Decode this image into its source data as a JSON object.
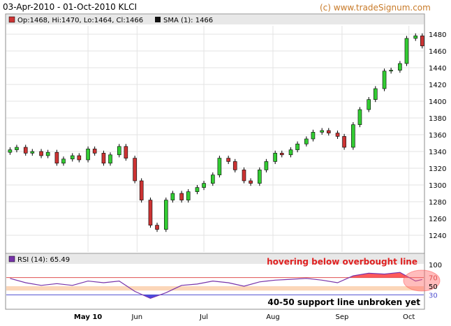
{
  "header": {
    "title": "03-Apr-2010 - 01-Oct-2010 KLCI",
    "copyright": "(c) www.tradeSignum.com"
  },
  "price_legend": {
    "ohlc_label": "Op:1468, Hi:1470, Lo:1464, Cl:1466",
    "sma_label": "SMA (1): 1466"
  },
  "rsi_legend": {
    "label": "RSI (14): 65.49"
  },
  "annotations": {
    "overbought_note": "hovering below overbought line",
    "support_note": "40-50 support line unbroken yet"
  },
  "colors": {
    "up_candle": "#33cc33",
    "down_candle": "#cc3333",
    "rsi_line": "#7733aa",
    "overbought_fill": "#ff5a5a",
    "oversold_fill": "#4a4ae0",
    "support_band": "#fbd6b8",
    "legend_bar": "#e8e8e8"
  },
  "chart_data": [
    {
      "type": "candlestick",
      "title": "03-Apr-2010 - 01-Oct-2010 KLCI",
      "ylim": [
        1220,
        1490
      ],
      "y_ticks": [
        1240,
        1260,
        1280,
        1300,
        1320,
        1340,
        1360,
        1380,
        1400,
        1420,
        1440,
        1460,
        1480
      ],
      "x_ticks": [
        "May 10",
        "Jun",
        "Jul",
        "Aug",
        "Sep",
        "Oct"
      ],
      "grid": true,
      "last": {
        "open": 1468,
        "high": 1470,
        "low": 1464,
        "close": 1466
      },
      "close_series": [
        {
          "date": "2010-04-05",
          "close": 1342
        },
        {
          "date": "2010-04-08",
          "close": 1345
        },
        {
          "date": "2010-04-12",
          "close": 1338
        },
        {
          "date": "2010-04-15",
          "close": 1340
        },
        {
          "date": "2010-04-19",
          "close": 1335
        },
        {
          "date": "2010-04-22",
          "close": 1339
        },
        {
          "date": "2010-04-26",
          "close": 1326
        },
        {
          "date": "2010-04-29",
          "close": 1331
        },
        {
          "date": "2010-05-03",
          "close": 1335
        },
        {
          "date": "2010-05-06",
          "close": 1330
        },
        {
          "date": "2010-05-10",
          "close": 1343
        },
        {
          "date": "2010-05-13",
          "close": 1338
        },
        {
          "date": "2010-05-17",
          "close": 1326
        },
        {
          "date": "2010-05-20",
          "close": 1336
        },
        {
          "date": "2010-05-24",
          "close": 1346
        },
        {
          "date": "2010-05-27",
          "close": 1332
        },
        {
          "date": "2010-05-31",
          "close": 1305
        },
        {
          "date": "2010-06-03",
          "close": 1282
        },
        {
          "date": "2010-06-07",
          "close": 1252
        },
        {
          "date": "2010-06-10",
          "close": 1247
        },
        {
          "date": "2010-06-14",
          "close": 1282
        },
        {
          "date": "2010-06-17",
          "close": 1290
        },
        {
          "date": "2010-06-21",
          "close": 1282
        },
        {
          "date": "2010-06-24",
          "close": 1292
        },
        {
          "date": "2010-06-28",
          "close": 1297
        },
        {
          "date": "2010-07-01",
          "close": 1302
        },
        {
          "date": "2010-07-05",
          "close": 1312
        },
        {
          "date": "2010-07-08",
          "close": 1332
        },
        {
          "date": "2010-07-12",
          "close": 1328
        },
        {
          "date": "2010-07-15",
          "close": 1318
        },
        {
          "date": "2010-07-19",
          "close": 1305
        },
        {
          "date": "2010-07-22",
          "close": 1302
        },
        {
          "date": "2010-07-26",
          "close": 1318
        },
        {
          "date": "2010-07-29",
          "close": 1328
        },
        {
          "date": "2010-08-02",
          "close": 1338
        },
        {
          "date": "2010-08-05",
          "close": 1336
        },
        {
          "date": "2010-08-09",
          "close": 1342
        },
        {
          "date": "2010-08-12",
          "close": 1349
        },
        {
          "date": "2010-08-16",
          "close": 1355
        },
        {
          "date": "2010-08-19",
          "close": 1363
        },
        {
          "date": "2010-08-23",
          "close": 1365
        },
        {
          "date": "2010-08-26",
          "close": 1362
        },
        {
          "date": "2010-08-30",
          "close": 1358
        },
        {
          "date": "2010-09-02",
          "close": 1345
        },
        {
          "date": "2010-09-06",
          "close": 1372
        },
        {
          "date": "2010-09-09",
          "close": 1390
        },
        {
          "date": "2010-09-13",
          "close": 1402
        },
        {
          "date": "2010-09-16",
          "close": 1415
        },
        {
          "date": "2010-09-20",
          "close": 1436
        },
        {
          "date": "2010-09-23",
          "close": 1437
        },
        {
          "date": "2010-09-27",
          "close": 1445
        },
        {
          "date": "2010-09-30",
          "close": 1475
        },
        {
          "date": "2010-10-04",
          "close": 1478
        },
        {
          "date": "2010-10-07",
          "close": 1466
        }
      ]
    },
    {
      "type": "line",
      "label": "RSI (14): 65.49",
      "ylim": [
        0,
        100
      ],
      "y_ticks": [
        30,
        50,
        70,
        100
      ],
      "overbought": 70,
      "oversold": 30,
      "support_band": [
        40,
        50
      ],
      "rsi_series": [
        {
          "date": "2010-04-05",
          "rsi": 68
        },
        {
          "date": "2010-04-12",
          "rsi": 58
        },
        {
          "date": "2010-04-19",
          "rsi": 52
        },
        {
          "date": "2010-04-26",
          "rsi": 56
        },
        {
          "date": "2010-05-03",
          "rsi": 52
        },
        {
          "date": "2010-05-10",
          "rsi": 62
        },
        {
          "date": "2010-05-17",
          "rsi": 58
        },
        {
          "date": "2010-05-24",
          "rsi": 62
        },
        {
          "date": "2010-05-31",
          "rsi": 38
        },
        {
          "date": "2010-06-07",
          "rsi": 22
        },
        {
          "date": "2010-06-14",
          "rsi": 35
        },
        {
          "date": "2010-06-21",
          "rsi": 52
        },
        {
          "date": "2010-06-28",
          "rsi": 55
        },
        {
          "date": "2010-07-05",
          "rsi": 62
        },
        {
          "date": "2010-07-12",
          "rsi": 58
        },
        {
          "date": "2010-07-19",
          "rsi": 50
        },
        {
          "date": "2010-07-26",
          "rsi": 60
        },
        {
          "date": "2010-08-02",
          "rsi": 64
        },
        {
          "date": "2010-08-09",
          "rsi": 66
        },
        {
          "date": "2010-08-16",
          "rsi": 68
        },
        {
          "date": "2010-08-23",
          "rsi": 64
        },
        {
          "date": "2010-08-30",
          "rsi": 58
        },
        {
          "date": "2010-09-06",
          "rsi": 74
        },
        {
          "date": "2010-09-13",
          "rsi": 80
        },
        {
          "date": "2010-09-20",
          "rsi": 78
        },
        {
          "date": "2010-09-27",
          "rsi": 82
        },
        {
          "date": "2010-10-04",
          "rsi": 62
        },
        {
          "date": "2010-10-07",
          "rsi": 65.49
        }
      ]
    }
  ]
}
